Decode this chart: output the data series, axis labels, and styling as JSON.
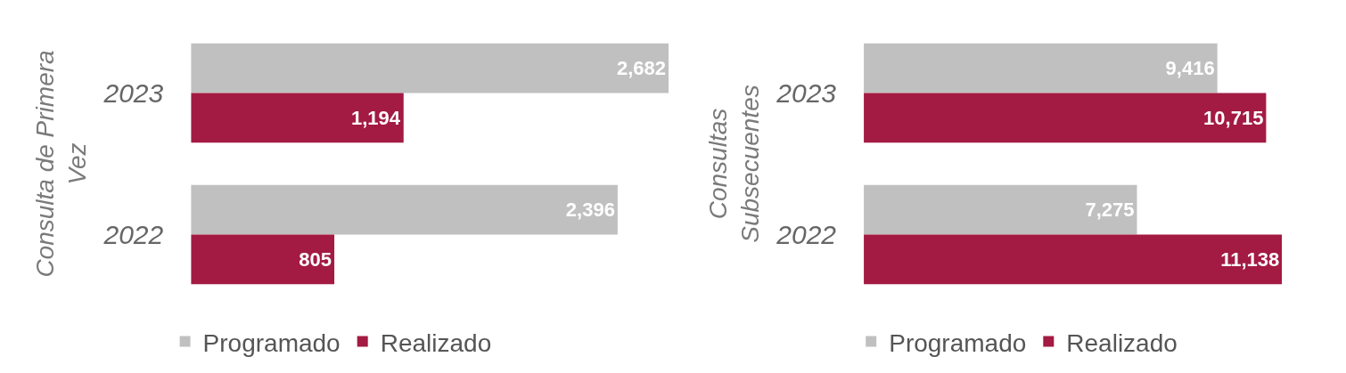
{
  "chart_data": [
    {
      "type": "bar",
      "orientation": "horizontal",
      "ylabel": "Consulta de Primera Vez",
      "categories": [
        "2023",
        "2022"
      ],
      "legend": "bottom",
      "series": [
        {
          "name": "Programado",
          "color": "#c0c0c0",
          "values": [
            2682,
            2396
          ],
          "value_labels": [
            "2,682",
            "2,396"
          ]
        },
        {
          "name": "Realizado",
          "color": "#a31a42",
          "values": [
            1194,
            805
          ],
          "value_labels": [
            "1,194",
            "805"
          ]
        }
      ]
    },
    {
      "type": "bar",
      "orientation": "horizontal",
      "ylabel": "Consultas Subsecuentes",
      "categories": [
        "2023",
        "2022"
      ],
      "legend": "bottom",
      "series": [
        {
          "name": "Programado",
          "color": "#c0c0c0",
          "values": [
            9416,
            7275
          ],
          "value_labels": [
            "9,416",
            "7,275"
          ]
        },
        {
          "name": "Realizado",
          "color": "#a31a42",
          "values": [
            10715,
            11138
          ],
          "value_labels": [
            "10,715",
            "11,138"
          ]
        }
      ]
    }
  ]
}
